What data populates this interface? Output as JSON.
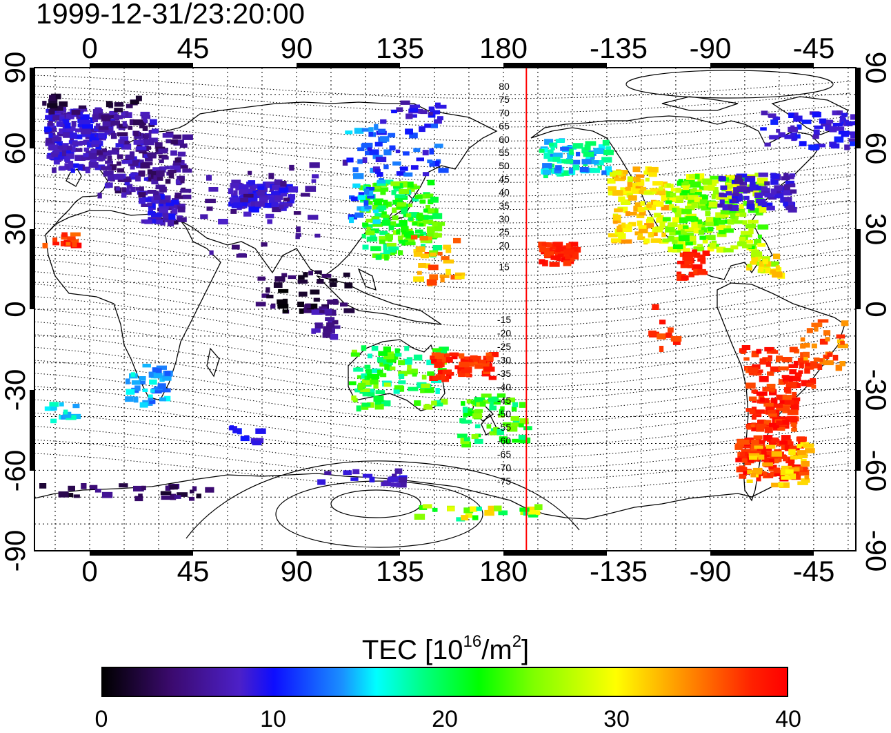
{
  "title": "1999-12-31/23:20:00",
  "map": {
    "top_lon_labels": [
      "0",
      "45",
      "90",
      "135",
      "180",
      "-135",
      "-90",
      "-45"
    ],
    "bottom_lon_labels": [
      "0",
      "45",
      "90",
      "135",
      "180",
      "-135",
      "-90",
      "-45"
    ],
    "left_lat_labels": [
      "90",
      "60",
      "30",
      "0",
      "-30",
      "-60",
      "-90"
    ],
    "right_lat_labels": [
      "90",
      "60",
      "30",
      "0",
      "-30",
      "-60",
      "-90"
    ],
    "contour_labels_north": [
      "80",
      "75",
      "70",
      "65",
      "60",
      "55",
      "50",
      "45",
      "40",
      "35",
      "30",
      "25",
      "20",
      "15"
    ],
    "contour_labels_south": [
      "-15",
      "-20",
      "-25",
      "-30",
      "-35",
      "-40",
      "-45",
      "-50",
      "-55",
      "-60",
      "-65",
      "-70",
      "-75"
    ],
    "terminator_longitude": 190,
    "terminator_color": "#ff0000"
  },
  "colorbar": {
    "title_main": "TEC  [10",
    "title_sup1": "16",
    "title_mid": "/m",
    "title_sup2": "2",
    "title_end": "]",
    "ticks": [
      "0",
      "10",
      "20",
      "30",
      "40"
    ],
    "range": [
      0,
      40
    ]
  }
}
